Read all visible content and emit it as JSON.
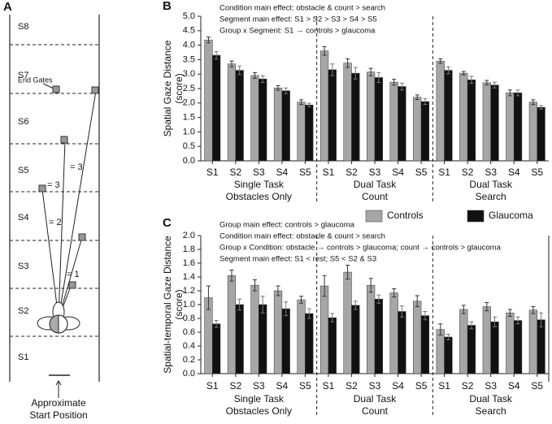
{
  "panel_a": {
    "label": "A",
    "sections": [
      "S8",
      "S7",
      "S6",
      "S5",
      "S4",
      "S3",
      "S2",
      "S1"
    ],
    "end_gates": "End Gates",
    "gate_numbers": [
      "= 1",
      "= 2",
      "= 3",
      "= 3"
    ],
    "caption": [
      "Approximate",
      "Start Position"
    ]
  },
  "chart_data": [
    {
      "type": "bar",
      "panel": "B",
      "annotations": [
        "Condition main effect: obstacle & count > search",
        "Segment main effect: S1 > S2 > S3 > S4 > S5",
        "Group x Segment: S1 → controls > glaucoma"
      ],
      "y_label": [
        "Spatial Gaze Distance",
        "(score)"
      ],
      "categories": [
        "S1",
        "S2",
        "S3",
        "S4",
        "S5",
        "S1",
        "S2",
        "S3",
        "S4",
        "S5",
        "S1",
        "S2",
        "S3",
        "S4",
        "S5"
      ],
      "groups": [
        {
          "name": "Single Task",
          "sub": "Obstacles Only"
        },
        {
          "name": "Dual Task",
          "sub": "Count"
        },
        {
          "name": "Dual Task",
          "sub": "Search"
        }
      ],
      "series": [
        {
          "color": "#a6a6a6",
          "values": [
            4.18,
            3.35,
            2.95,
            2.52,
            2.03,
            3.8,
            3.38,
            3.07,
            2.72,
            2.2,
            3.45,
            3.03,
            2.7,
            2.35,
            2.03
          ],
          "errors": [
            0.1,
            0.1,
            0.1,
            0.08,
            0.08,
            0.15,
            0.15,
            0.13,
            0.1,
            0.08,
            0.08,
            0.06,
            0.08,
            0.1,
            0.08
          ]
        },
        {
          "color": "#111111",
          "values": [
            3.65,
            3.13,
            2.83,
            2.42,
            1.93,
            3.15,
            3.03,
            2.88,
            2.57,
            2.05,
            3.13,
            2.8,
            2.62,
            2.35,
            1.85
          ],
          "errors": [
            0.13,
            0.15,
            0.12,
            0.1,
            0.06,
            0.2,
            0.2,
            0.17,
            0.12,
            0.1,
            0.12,
            0.12,
            0.1,
            0.1,
            0.06
          ]
        }
      ],
      "ylim": [
        0,
        5
      ],
      "yticks": [
        {
          "value": 0,
          "label": "0.0"
        },
        0.5,
        {
          "value": 1,
          "label": "1.0"
        },
        1.5,
        {
          "value": 2,
          "label": "2.0"
        },
        2.5,
        {
          "value": 3,
          "label": "3.0"
        },
        3.5,
        {
          "value": 4,
          "label": "4.0"
        },
        4.5,
        {
          "value": 5,
          "label": "5.0"
        }
      ]
    },
    {
      "type": "bar",
      "panel": "C",
      "annotations": [
        "Group main effect: controls > glaucoma",
        "Condition main effect: obstacle & count > search",
        "Group x Condition: obstacle → controls > glaucoma; count → controls > glaucoma",
        "Segment main effect: S1 < rest; S5 < S2 & S3"
      ],
      "y_label": [
        "Spatial-temporal Gaze Distance",
        "(score)"
      ],
      "categories": [
        "S1",
        "S2",
        "S3",
        "S4",
        "S5",
        "S1",
        "S2",
        "S3",
        "S4",
        "S5",
        "S1",
        "S2",
        "S3",
        "S4",
        "S5"
      ],
      "groups": [
        {
          "name": "Single Task",
          "sub": "Obstacles Only"
        },
        {
          "name": "Dual Task",
          "sub": "Count"
        },
        {
          "name": "Dual Task",
          "sub": "Search"
        }
      ],
      "series": [
        {
          "name": "Controls",
          "color": "#a6a6a6",
          "values": [
            1.1,
            1.42,
            1.28,
            1.2,
            1.07,
            1.27,
            1.47,
            1.28,
            1.17,
            1.05,
            0.64,
            0.93,
            0.97,
            0.88,
            0.92
          ],
          "errors": [
            0.17,
            0.08,
            0.08,
            0.07,
            0.05,
            0.15,
            0.1,
            0.1,
            0.06,
            0.08,
            0.08,
            0.06,
            0.06,
            0.05,
            0.05
          ]
        },
        {
          "name": "Glaucoma",
          "color": "#111111",
          "values": [
            0.72,
            1.0,
            1.0,
            0.94,
            0.87,
            0.81,
            0.99,
            1.08,
            0.9,
            0.84,
            0.53,
            0.7,
            0.75,
            0.77,
            0.78
          ],
          "errors": [
            0.05,
            0.08,
            0.12,
            0.1,
            0.07,
            0.06,
            0.06,
            0.06,
            0.08,
            0.06,
            0.04,
            0.05,
            0.07,
            0.05,
            0.1
          ]
        }
      ],
      "ylim": [
        0,
        2
      ],
      "yticks": [
        {
          "value": 0,
          "label": "0.0"
        },
        0.2,
        0.4,
        0.6,
        0.8,
        {
          "value": 1,
          "label": "1.0"
        },
        1.2,
        1.4,
        1.6,
        1.8,
        {
          "value": 2,
          "label": "2.0"
        }
      ]
    }
  ]
}
